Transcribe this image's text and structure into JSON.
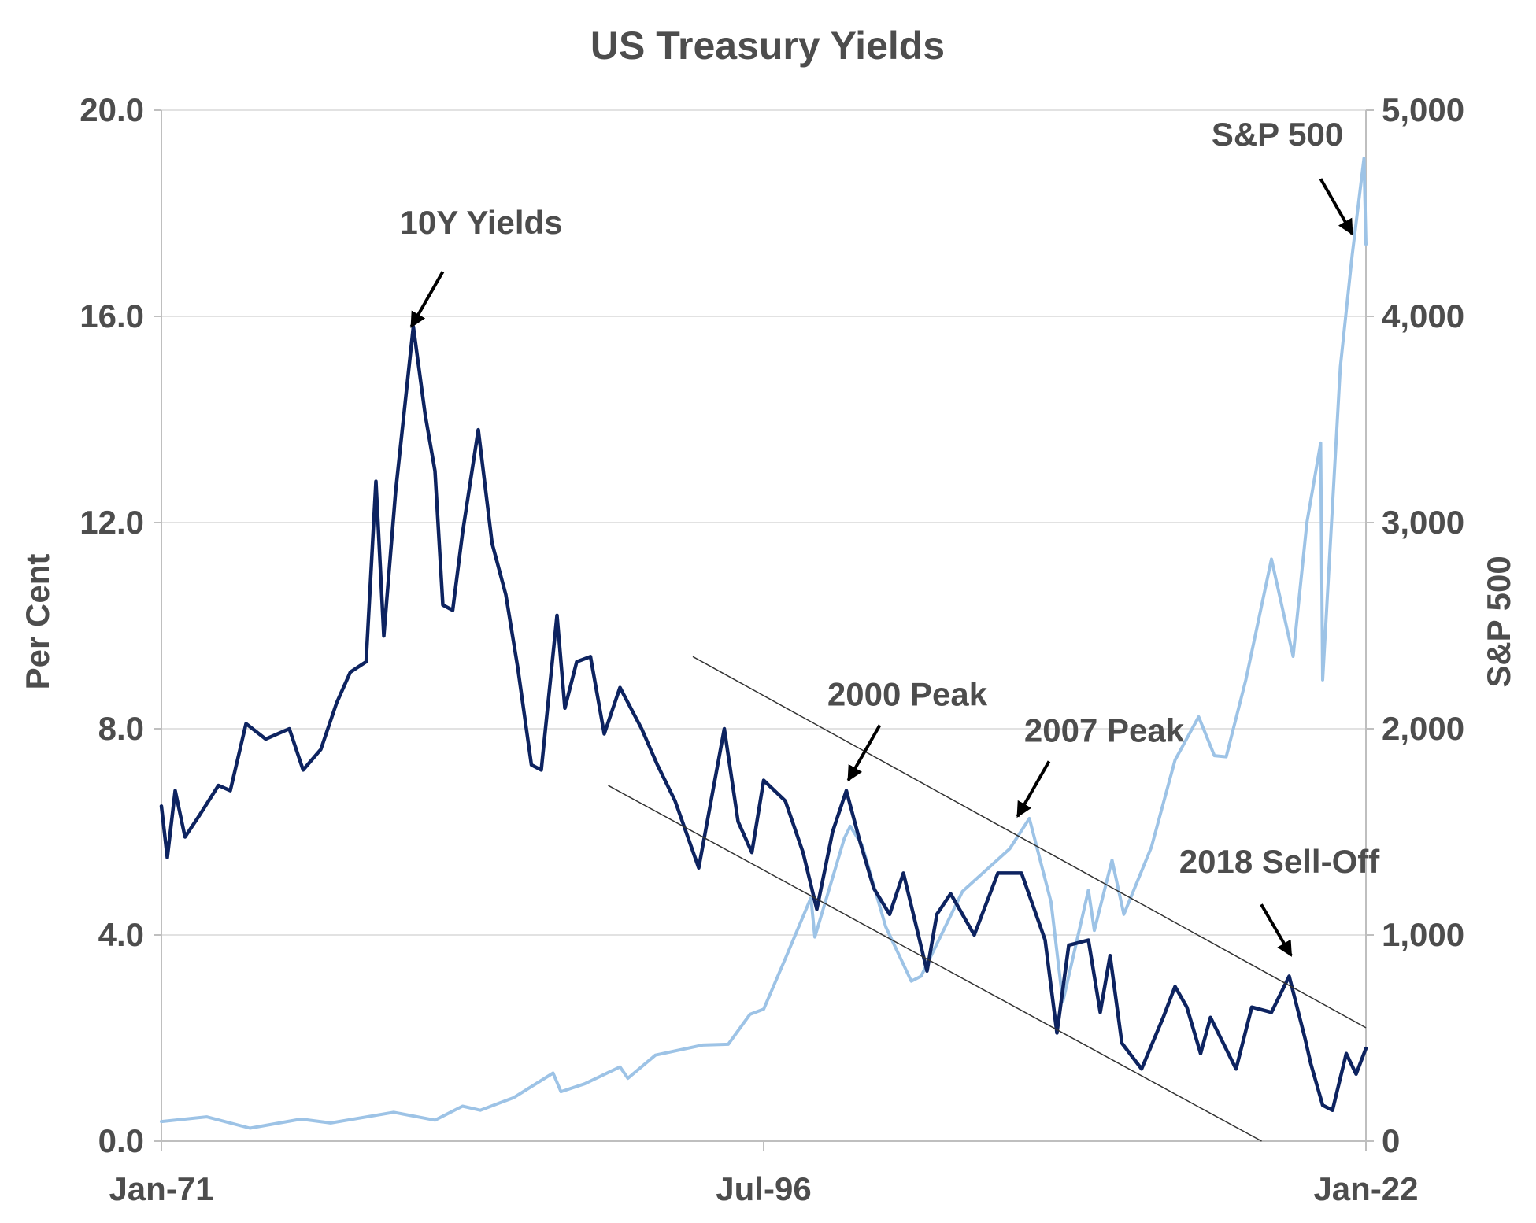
{
  "chart_data": {
    "type": "line",
    "title": "US Treasury Yields",
    "ylabel": "Per Cent",
    "y2label": "S&P 500",
    "ylim": [
      0,
      20
    ],
    "y2lim": [
      0,
      5000
    ],
    "xlim": [
      "1971-01",
      "2022-01"
    ],
    "x_ticks": [
      {
        "date": "1971-01",
        "label": "Jan-71"
      },
      {
        "date": "1996-07",
        "label": "Jul-96"
      },
      {
        "date": "2022-01",
        "label": "Jan-22"
      }
    ],
    "y_ticks": [
      {
        "value": 0,
        "label": "0.0"
      },
      {
        "value": 4,
        "label": "4.0"
      },
      {
        "value": 8,
        "label": "8.0"
      },
      {
        "value": 12,
        "label": "12.0"
      },
      {
        "value": 16,
        "label": "16.0"
      },
      {
        "value": 20,
        "label": "20.0"
      }
    ],
    "y2_ticks": [
      {
        "value": 0,
        "label": "0"
      },
      {
        "value": 1000,
        "label": "1,000"
      },
      {
        "value": 2000,
        "label": "2,000"
      },
      {
        "value": 3000,
        "label": "3,000"
      },
      {
        "value": 4000,
        "label": "4,000"
      },
      {
        "value": 5000,
        "label": "5,000"
      }
    ],
    "grid": true,
    "series": [
      {
        "name": "10Y Yields",
        "axis": "left",
        "color": "#0d2360",
        "points": [
          [
            "1971-01",
            6.5
          ],
          [
            "1971-04",
            5.5
          ],
          [
            "1971-08",
            6.8
          ],
          [
            "1972-01",
            5.9
          ],
          [
            "1972-08",
            6.3
          ],
          [
            "1973-06",
            6.9
          ],
          [
            "1973-12",
            6.8
          ],
          [
            "1974-08",
            8.1
          ],
          [
            "1975-06",
            7.8
          ],
          [
            "1976-06",
            8.0
          ],
          [
            "1977-01",
            7.2
          ],
          [
            "1977-10",
            7.6
          ],
          [
            "1978-06",
            8.5
          ],
          [
            "1979-01",
            9.1
          ],
          [
            "1979-09",
            9.3
          ],
          [
            "1980-02",
            12.8
          ],
          [
            "1980-06",
            9.8
          ],
          [
            "1980-12",
            12.6
          ],
          [
            "1981-09",
            15.8
          ],
          [
            "1982-03",
            14.1
          ],
          [
            "1982-08",
            13.0
          ],
          [
            "1982-12",
            10.4
          ],
          [
            "1983-05",
            10.3
          ],
          [
            "1983-10",
            11.8
          ],
          [
            "1984-06",
            13.8
          ],
          [
            "1985-01",
            11.6
          ],
          [
            "1985-08",
            10.6
          ],
          [
            "1986-02",
            9.2
          ],
          [
            "1986-09",
            7.3
          ],
          [
            "1987-02",
            7.2
          ],
          [
            "1987-10",
            10.2
          ],
          [
            "1988-02",
            8.4
          ],
          [
            "1988-08",
            9.3
          ],
          [
            "1989-03",
            9.4
          ],
          [
            "1989-10",
            7.9
          ],
          [
            "1990-06",
            8.8
          ],
          [
            "1991-05",
            8.0
          ],
          [
            "1992-01",
            7.3
          ],
          [
            "1992-10",
            6.6
          ],
          [
            "1993-10",
            5.3
          ],
          [
            "1994-11",
            8.0
          ],
          [
            "1995-06",
            6.2
          ],
          [
            "1996-01",
            5.6
          ],
          [
            "1996-07",
            7.0
          ],
          [
            "1997-06",
            6.6
          ],
          [
            "1998-03",
            5.6
          ],
          [
            "1998-10",
            4.5
          ],
          [
            "1999-06",
            6.0
          ],
          [
            "2000-01",
            6.8
          ],
          [
            "2000-08",
            5.8
          ],
          [
            "2001-03",
            4.9
          ],
          [
            "2001-11",
            4.4
          ],
          [
            "2002-06",
            5.2
          ],
          [
            "2003-06",
            3.3
          ],
          [
            "2003-11",
            4.4
          ],
          [
            "2004-06",
            4.8
          ],
          [
            "2005-06",
            4.0
          ],
          [
            "2006-06",
            5.2
          ],
          [
            "2007-06",
            5.2
          ],
          [
            "2008-06",
            3.9
          ],
          [
            "2008-12",
            2.1
          ],
          [
            "2009-06",
            3.8
          ],
          [
            "2010-04",
            3.9
          ],
          [
            "2010-10",
            2.5
          ],
          [
            "2011-03",
            3.6
          ],
          [
            "2011-09",
            1.9
          ],
          [
            "2012-07",
            1.4
          ],
          [
            "2013-06",
            2.4
          ],
          [
            "2013-12",
            3.0
          ],
          [
            "2014-06",
            2.6
          ],
          [
            "2015-01",
            1.7
          ],
          [
            "2015-06",
            2.4
          ],
          [
            "2016-07",
            1.4
          ],
          [
            "2017-03",
            2.6
          ],
          [
            "2018-01",
            2.5
          ],
          [
            "2018-10",
            3.2
          ],
          [
            "2019-06",
            2.0
          ],
          [
            "2019-09",
            1.5
          ],
          [
            "2020-03",
            0.7
          ],
          [
            "2020-08",
            0.6
          ],
          [
            "2021-03",
            1.7
          ],
          [
            "2021-08",
            1.3
          ],
          [
            "2022-01",
            1.8
          ]
        ]
      },
      {
        "name": "S&P 500",
        "axis": "right",
        "color": "#9dc3e6",
        "points": [
          [
            "1971-01",
            95
          ],
          [
            "1972-12",
            118
          ],
          [
            "1974-10",
            63
          ],
          [
            "1976-12",
            107
          ],
          [
            "1978-03",
            88
          ],
          [
            "1980-11",
            140
          ],
          [
            "1982-08",
            102
          ],
          [
            "1983-10",
            170
          ],
          [
            "1984-07",
            150
          ],
          [
            "1985-12",
            211
          ],
          [
            "1987-08",
            330
          ],
          [
            "1987-12",
            240
          ],
          [
            "1988-12",
            278
          ],
          [
            "1990-06",
            360
          ],
          [
            "1990-10",
            305
          ],
          [
            "1991-12",
            417
          ],
          [
            "1993-12",
            466
          ],
          [
            "1995-01",
            470
          ],
          [
            "1995-12",
            615
          ],
          [
            "1996-07",
            640
          ],
          [
            "1997-06",
            885
          ],
          [
            "1998-07",
            1180
          ],
          [
            "1998-09",
            990
          ],
          [
            "1999-12",
            1469
          ],
          [
            "2000-03",
            1527
          ],
          [
            "2000-09",
            1436
          ],
          [
            "2001-09",
            1040
          ],
          [
            "2002-10",
            776
          ],
          [
            "2003-03",
            800
          ],
          [
            "2004-12",
            1211
          ],
          [
            "2006-12",
            1418
          ],
          [
            "2007-10",
            1565
          ],
          [
            "2008-09",
            1160
          ],
          [
            "2009-03",
            676
          ],
          [
            "2010-04",
            1217
          ],
          [
            "2010-07",
            1022
          ],
          [
            "2011-04",
            1363
          ],
          [
            "2011-10",
            1100
          ],
          [
            "2012-12",
            1426
          ],
          [
            "2013-12",
            1848
          ],
          [
            "2014-12",
            2058
          ],
          [
            "2015-08",
            1870
          ],
          [
            "2016-02",
            1864
          ],
          [
            "2016-12",
            2238
          ],
          [
            "2018-01",
            2823
          ],
          [
            "2018-12",
            2351
          ],
          [
            "2019-07",
            3000
          ],
          [
            "2020-02",
            3386
          ],
          [
            "2020-03",
            2237
          ],
          [
            "2020-12",
            3756
          ],
          [
            "2021-06",
            4297
          ],
          [
            "2021-12",
            4766
          ],
          [
            "2022-01",
            4350
          ]
        ]
      }
    ],
    "channel_lines": [
      {
        "start": {
          "x": "1993-07",
          "y": 9.4
        },
        "end": {
          "x": "2022-01",
          "y": 2.2
        }
      },
      {
        "start": {
          "x": "1989-12",
          "y": 6.9
        },
        "end": {
          "x": "2017-08",
          "y": 0.0
        }
      }
    ],
    "annotations": [
      {
        "label": "10Y Yields",
        "target": {
          "x": "1981-08",
          "y": 15.8
        }
      },
      {
        "label": "2000 Peak",
        "target": {
          "x": "2000-02",
          "y": 7.0
        }
      },
      {
        "label": "2007 Peak",
        "target": {
          "x": "2007-04",
          "y": 6.3
        }
      },
      {
        "label": "S&P 500",
        "target": {
          "x": "2021-06",
          "y": 17.6
        }
      },
      {
        "label": "2018 Sell-Off",
        "target": {
          "x": "2018-11",
          "y": 3.6
        }
      }
    ]
  }
}
